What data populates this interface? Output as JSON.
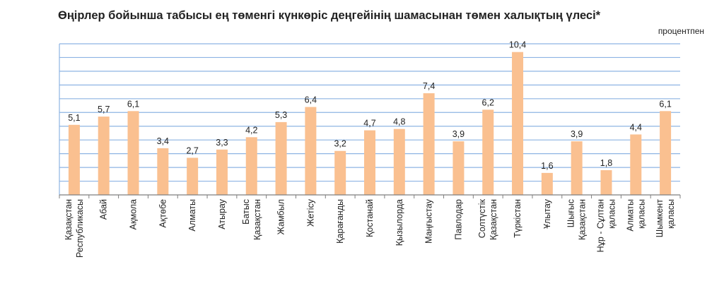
{
  "chart_data": {
    "type": "bar",
    "title": "Өңірлер бойынша табысы ең төменгі күнкөріс деңгейінің шамасынан төмен халықтың үлесі*",
    "unit": "процентпен",
    "categories": [
      [
        "Қазақстан",
        "Республикасы"
      ],
      [
        "Абай"
      ],
      [
        "Ақмола"
      ],
      [
        "Ақтөбе"
      ],
      [
        "Алматы"
      ],
      [
        "Атырау"
      ],
      [
        "Батыс",
        "Қазақстан"
      ],
      [
        "Жамбыл"
      ],
      [
        "Жетісу"
      ],
      [
        "Қарағанды"
      ],
      [
        "Қостанай"
      ],
      [
        "Қызылорда"
      ],
      [
        "Маңғыстау"
      ],
      [
        "Павлодар"
      ],
      [
        "Солтүстік",
        "Қазақстан"
      ],
      [
        "Түркістан"
      ],
      [
        "Ұлытау"
      ],
      [
        "Шығыс",
        "Қазақстан"
      ],
      [
        "Нұр - Сұлтан",
        "қаласы"
      ],
      [
        "Алматы",
        "қаласы"
      ],
      [
        "Шымкент",
        "қаласы"
      ]
    ],
    "values": [
      5.1,
      5.7,
      6.1,
      3.4,
      2.7,
      3.3,
      4.2,
      5.3,
      6.4,
      3.2,
      4.7,
      4.8,
      7.4,
      3.9,
      6.2,
      10.4,
      1.6,
      3.9,
      1.8,
      4.4,
      6.1
    ],
    "value_labels": [
      "5,1",
      "5,7",
      "6,1",
      "3,4",
      "2,7",
      "3,3",
      "4,2",
      "5,3",
      "6,4",
      "3,2",
      "4,7",
      "4,8",
      "7,4",
      "3,9",
      "6,2",
      "10,4",
      "1,6",
      "3,9",
      "1,8",
      "4,4",
      "6,1"
    ],
    "ylim": [
      0,
      11
    ],
    "grid": true,
    "bar_color": "#fac090",
    "grid_color": "#8eb4e3"
  }
}
